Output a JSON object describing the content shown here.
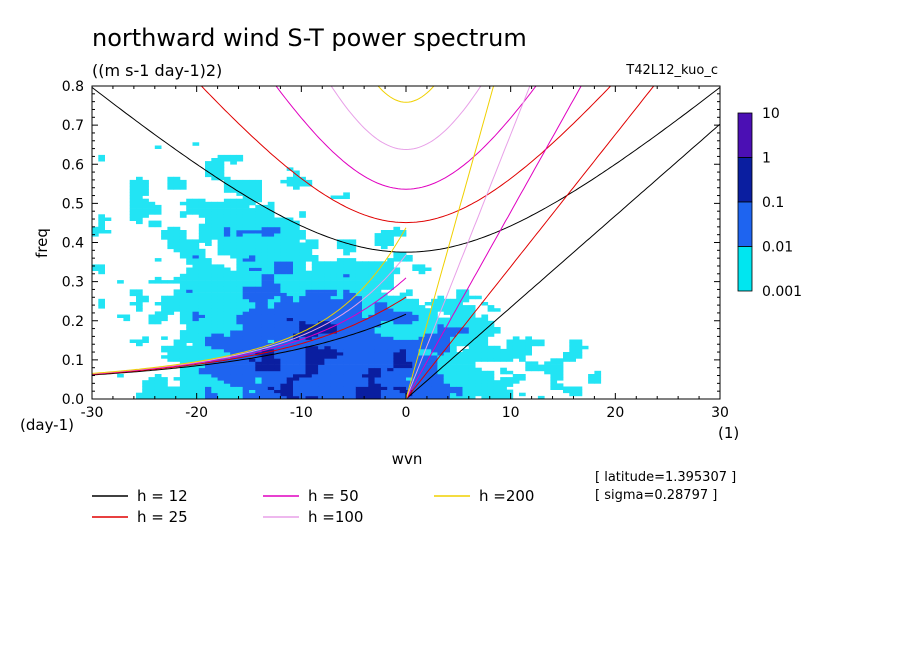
{
  "chart_data": {
    "type": "heatmap",
    "title": "northward wind S-T power spectrum",
    "units": "((m s-1 day-1)2)",
    "run_id": "T42L12_kuo_c",
    "xlabel": "wvn",
    "ylabel": "freq",
    "x_unit": "(1)",
    "y_unit": "(day-1)",
    "xlim": [
      -30,
      30
    ],
    "ylim": [
      0,
      0.8
    ],
    "x_ticks": [
      -30,
      -20,
      -10,
      0,
      10,
      20,
      30
    ],
    "x_tick_labels": [
      "-30",
      "-20",
      "-10",
      "0",
      "10",
      "20",
      "30"
    ],
    "y_ticks": [
      0,
      0.1,
      0.2,
      0.3,
      0.4,
      0.5,
      0.6,
      0.7,
      0.8
    ],
    "y_tick_labels": [
      "0.0",
      "0.1",
      "0.2",
      "0.3",
      "0.4",
      "0.5",
      "0.6",
      "0.7",
      "0.8"
    ],
    "colorbar": {
      "levels": [
        "10",
        "1",
        "0.1",
        "0.01",
        "0.001"
      ],
      "colors": [
        "#4B0FB4",
        "#0A1EA0",
        "#1E64F0",
        "#00E6F0",
        "#00E6F0"
      ]
    },
    "contour_colors": {
      "level_0.001": "#22E4F4",
      "level_0.01": "#1E64F0",
      "level_0.1": "#0A1EA0"
    },
    "dispersion_curves": [
      {
        "name": "h = 12",
        "h": 12,
        "color": "#000000"
      },
      {
        "name": "h = 25",
        "h": 25,
        "color": "#E00000"
      },
      {
        "name": "h = 50",
        "h": 50,
        "color": "#E000C0"
      },
      {
        "name": "h =100",
        "h": 100,
        "color": "#E8A0E8"
      },
      {
        "name": "h =200",
        "h": 200,
        "color": "#F0D000"
      }
    ],
    "info": {
      "latitude": "[ latitude=1.395307 ]",
      "sigma": "[ sigma=0.28797 ]"
    }
  }
}
